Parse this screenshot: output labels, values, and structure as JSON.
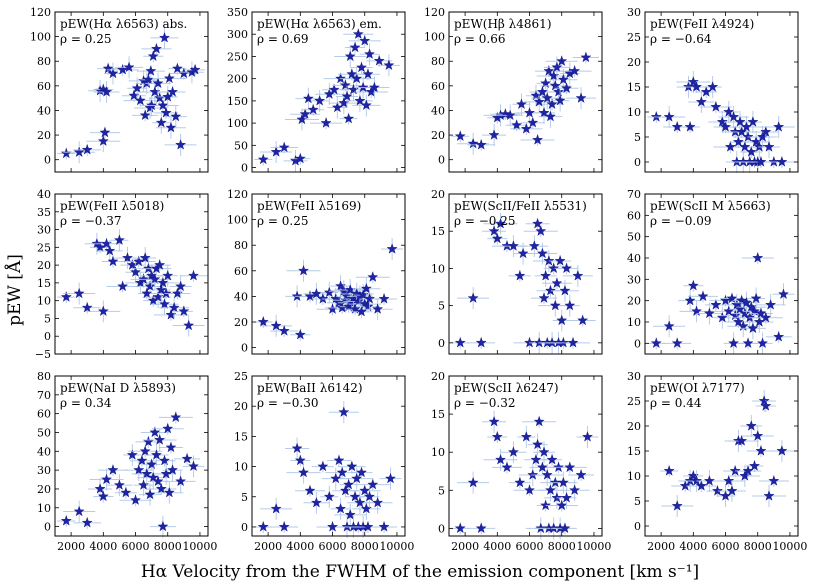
{
  "figure": {
    "ylabel": "pEW [Å]",
    "xlabel": "Hα Velocity from the FWHM of the emission component [km s⁻¹]"
  },
  "colors": {
    "marker": "#1f24a6",
    "errorbar": "#a9c3e6"
  },
  "chart_data": [
    {
      "type": "scatter",
      "title": "pEW(Hα λ6563) abs.",
      "rho": "ρ = 0.25",
      "xlim": [
        1000,
        10500
      ],
      "ylim": [
        -10,
        120
      ],
      "xticks": [
        2000,
        4000,
        6000,
        8000,
        10000
      ],
      "yticks": [
        0,
        20,
        40,
        60,
        80,
        100,
        120
      ],
      "x": [
        1700,
        2500,
        3000,
        3800,
        4000,
        4000,
        4100,
        4200,
        4300,
        4600,
        5200,
        5600,
        5900,
        6100,
        6300,
        6500,
        6600,
        6700,
        6800,
        6900,
        6950,
        7000,
        7100,
        7200,
        7300,
        7400,
        7500,
        7600,
        7700,
        7800,
        7900,
        8000,
        8100,
        8200,
        8300,
        8500,
        8600,
        8800,
        9000,
        9500,
        9700
      ],
      "y": [
        5,
        6,
        8,
        56,
        57,
        15,
        22,
        55,
        74,
        70,
        73,
        75,
        52,
        58,
        48,
        64,
        36,
        62,
        65,
        42,
        72,
        44,
        84,
        55,
        90,
        62,
        50,
        30,
        44,
        99,
        38,
        51,
        66,
        26,
        55,
        35,
        74,
        12,
        70,
        71,
        73
      ]
    },
    {
      "type": "scatter",
      "title": "pEW(Hα λ6563) em.",
      "rho": "ρ = 0.69",
      "xlim": [
        1000,
        10500
      ],
      "ylim": [
        -10,
        350
      ],
      "xticks": [
        2000,
        4000,
        6000,
        8000,
        10000
      ],
      "yticks": [
        0,
        50,
        100,
        150,
        200,
        250,
        300,
        350
      ],
      "x": [
        1700,
        2500,
        3000,
        3700,
        4000,
        4100,
        4300,
        4500,
        4800,
        5200,
        5600,
        5800,
        6100,
        6300,
        6500,
        6700,
        6800,
        6900,
        7000,
        7100,
        7200,
        7300,
        7400,
        7500,
        7600,
        7700,
        7800,
        7900,
        8000,
        8100,
        8200,
        8300,
        8400,
        8600,
        8900,
        9500
      ],
      "y": [
        18,
        35,
        45,
        15,
        20,
        108,
        120,
        155,
        130,
        150,
        100,
        165,
        175,
        135,
        200,
        145,
        185,
        160,
        110,
        250,
        210,
        175,
        270,
        200,
        300,
        150,
        225,
        180,
        285,
        140,
        210,
        255,
        170,
        180,
        240,
        230
      ]
    },
    {
      "type": "scatter",
      "title": "pEW(Hβ λ4861)",
      "rho": "ρ = 0.66",
      "xlim": [
        1000,
        10500
      ],
      "ylim": [
        -10,
        120
      ],
      "xticks": [
        2000,
        4000,
        6000,
        8000,
        10000
      ],
      "yticks": [
        0,
        20,
        40,
        60,
        80,
        100,
        120
      ],
      "x": [
        1700,
        2500,
        3000,
        3800,
        4000,
        4200,
        4500,
        4800,
        5200,
        5500,
        5800,
        6000,
        6200,
        6400,
        6500,
        6600,
        6800,
        6900,
        7000,
        7100,
        7200,
        7300,
        7400,
        7500,
        7600,
        7700,
        7800,
        7900,
        8000,
        8100,
        8300,
        8500,
        8800,
        9200,
        9500
      ],
      "y": [
        19,
        13,
        12,
        20,
        34,
        36,
        37,
        36,
        28,
        45,
        25,
        38,
        30,
        52,
        16,
        47,
        55,
        38,
        62,
        50,
        72,
        35,
        45,
        68,
        60,
        75,
        55,
        48,
        80,
        65,
        58,
        70,
        72,
        50,
        83
      ]
    },
    {
      "type": "scatter",
      "title": "pEW(FeII λ4924)",
      "rho": "ρ = −0.64",
      "xlim": [
        1000,
        10500
      ],
      "ylim": [
        -2,
        30
      ],
      "xticks": [
        2000,
        4000,
        6000,
        8000,
        10000
      ],
      "yticks": [
        0,
        5,
        10,
        15,
        20,
        25,
        30
      ],
      "x": [
        1700,
        2500,
        3000,
        3700,
        3800,
        4000,
        4200,
        4500,
        4800,
        5200,
        5400,
        5800,
        6000,
        6200,
        6300,
        6500,
        6600,
        6700,
        6800,
        6900,
        7000,
        7100,
        7200,
        7300,
        7400,
        7500,
        7600,
        7700,
        7800,
        7900,
        8000,
        8100,
        8200,
        8300,
        8500,
        8700,
        9000,
        9300,
        9500
      ],
      "y": [
        9,
        9,
        7,
        15,
        7,
        16,
        15,
        12,
        14,
        15,
        11,
        8,
        7,
        10,
        3,
        9,
        6,
        0,
        4,
        8,
        6,
        0,
        3,
        7,
        5,
        0,
        2,
        8,
        0,
        4,
        0,
        3,
        0,
        5,
        6,
        3,
        0,
        7,
        0
      ]
    },
    {
      "type": "scatter",
      "title": "pEW(FeII λ5018)",
      "rho": "ρ = −0.37",
      "xlim": [
        1000,
        10500
      ],
      "ylim": [
        -5,
        40
      ],
      "xticks": [
        2000,
        4000,
        6000,
        8000,
        10000
      ],
      "yticks": [
        -5,
        0,
        5,
        10,
        15,
        20,
        25,
        30,
        35,
        40
      ],
      "x": [
        1700,
        2500,
        3000,
        3600,
        3800,
        4000,
        4200,
        4400,
        4600,
        5000,
        5200,
        5500,
        5800,
        6000,
        6200,
        6300,
        6500,
        6600,
        6700,
        6800,
        6900,
        7000,
        7100,
        7200,
        7300,
        7400,
        7500,
        7600,
        7700,
        7800,
        7900,
        8000,
        8200,
        8400,
        8600,
        8800,
        9000,
        9300,
        9600
      ],
      "y": [
        11,
        12,
        8,
        26,
        25,
        7,
        26,
        24,
        21,
        27,
        14,
        22,
        20,
        18,
        21,
        15,
        16,
        22,
        12,
        19,
        14,
        17,
        10,
        16,
        19,
        11,
        20,
        13,
        15,
        9,
        12,
        17,
        6,
        8,
        12,
        14,
        7,
        3,
        17
      ]
    },
    {
      "type": "scatter",
      "title": "pEW(FeII λ5169)",
      "rho": "ρ = 0.25",
      "xlim": [
        1000,
        10500
      ],
      "ylim": [
        -5,
        120
      ],
      "xticks": [
        2000,
        4000,
        6000,
        8000,
        10000
      ],
      "yticks": [
        0,
        20,
        40,
        60,
        80,
        100,
        120
      ],
      "x": [
        1700,
        2500,
        3000,
        3800,
        4000,
        4200,
        4600,
        5000,
        5400,
        5800,
        6000,
        6200,
        6400,
        6500,
        6600,
        6700,
        6800,
        6900,
        7000,
        7100,
        7200,
        7300,
        7400,
        7500,
        7600,
        7700,
        7800,
        7900,
        8000,
        8100,
        8200,
        8300,
        8500,
        8800,
        9200,
        9700
      ],
      "y": [
        20,
        17,
        13,
        40,
        10,
        60,
        40,
        42,
        38,
        43,
        30,
        38,
        35,
        48,
        31,
        44,
        37,
        40,
        32,
        45,
        35,
        38,
        30,
        42,
        36,
        40,
        28,
        41,
        34,
        46,
        32,
        38,
        55,
        30,
        38,
        77
      ]
    },
    {
      "type": "scatter",
      "title": "pEW(ScII/FeII λ5531)",
      "rho": "ρ = −0.25",
      "xlim": [
        1000,
        10500
      ],
      "ylim": [
        -1.5,
        20
      ],
      "xticks": [
        2000,
        4000,
        6000,
        8000,
        10000
      ],
      "yticks": [
        0,
        5,
        10,
        15,
        20
      ],
      "x": [
        1700,
        2500,
        3000,
        3800,
        4000,
        4200,
        4600,
        5000,
        5400,
        5600,
        6000,
        6300,
        6500,
        6600,
        6700,
        6800,
        6900,
        7000,
        7100,
        7200,
        7300,
        7400,
        7500,
        7600,
        7700,
        7800,
        7900,
        8000,
        8100,
        8200,
        8300,
        8500,
        8700,
        9000,
        9300
      ],
      "y": [
        0,
        6,
        0,
        15,
        14,
        16,
        13,
        13,
        9,
        12,
        0,
        13,
        16,
        0,
        15,
        12,
        6,
        9,
        0,
        11,
        7,
        0,
        10,
        5,
        8,
        0,
        11,
        3,
        0,
        7,
        10,
        5,
        0,
        9,
        3
      ]
    },
    {
      "type": "scatter",
      "title": "pEW(ScII M λ5663)",
      "rho": "ρ = −0.09",
      "xlim": [
        1000,
        10500
      ],
      "ylim": [
        -5,
        70
      ],
      "xticks": [
        2000,
        4000,
        6000,
        8000,
        10000
      ],
      "yticks": [
        0,
        10,
        20,
        30,
        40,
        50,
        60,
        70
      ],
      "x": [
        1700,
        2500,
        3000,
        3800,
        4000,
        4200,
        4600,
        5000,
        5400,
        5800,
        6000,
        6200,
        6400,
        6500,
        6600,
        6700,
        6800,
        6900,
        7000,
        7100,
        7200,
        7300,
        7400,
        7500,
        7600,
        7700,
        7800,
        7900,
        8000,
        8100,
        8200,
        8300,
        8500,
        8800,
        9300,
        9600
      ],
      "y": [
        0,
        8,
        0,
        20,
        27,
        15,
        22,
        14,
        18,
        12,
        20,
        15,
        21,
        0,
        13,
        18,
        10,
        16,
        20,
        8,
        14,
        19,
        0,
        12,
        17,
        7,
        15,
        21,
        40,
        10,
        14,
        0,
        12,
        18,
        3,
        23
      ]
    },
    {
      "type": "scatter",
      "title": "pEW(NaI D λ5893)",
      "rho": "ρ = 0.34",
      "xlim": [
        1000,
        10500
      ],
      "ylim": [
        -5,
        80
      ],
      "xticks": [
        2000,
        4000,
        6000,
        8000,
        10000
      ],
      "yticks": [
        0,
        10,
        20,
        30,
        40,
        50,
        60,
        70,
        80
      ],
      "x": [
        1700,
        2500,
        3000,
        3800,
        4000,
        4200,
        4600,
        5000,
        5400,
        5800,
        6000,
        6200,
        6400,
        6500,
        6600,
        6700,
        6800,
        6900,
        7000,
        7100,
        7200,
        7300,
        7400,
        7500,
        7600,
        7700,
        7800,
        7900,
        8000,
        8100,
        8200,
        8300,
        8500,
        8800,
        9200,
        9600
      ],
      "y": [
        3,
        8,
        2,
        20,
        16,
        25,
        30,
        22,
        18,
        38,
        14,
        30,
        35,
        22,
        40,
        28,
        45,
        17,
        33,
        26,
        50,
        38,
        24,
        46,
        20,
        0,
        35,
        28,
        52,
        18,
        42,
        30,
        58,
        24,
        36,
        32
      ]
    },
    {
      "type": "scatter",
      "title": "pEW(BaII λ6142)",
      "rho": "ρ = −0.30",
      "xlim": [
        1000,
        10500
      ],
      "ylim": [
        -1.5,
        25
      ],
      "xticks": [
        2000,
        4000,
        6000,
        8000,
        10000
      ],
      "yticks": [
        0,
        5,
        10,
        15,
        20,
        25
      ],
      "x": [
        1700,
        2500,
        3000,
        3800,
        4000,
        4200,
        4600,
        5000,
        5400,
        5800,
        6000,
        6200,
        6400,
        6500,
        6600,
        6700,
        6800,
        6900,
        7000,
        7100,
        7200,
        7300,
        7400,
        7500,
        7600,
        7700,
        7800,
        7900,
        8000,
        8100,
        8200,
        8300,
        8500,
        8800,
        9200,
        9600
      ],
      "y": [
        0,
        3,
        0,
        13,
        11,
        9,
        6,
        4,
        10,
        5,
        0,
        8,
        11,
        3,
        9,
        19,
        6,
        0,
        7,
        2,
        10,
        0,
        5,
        8,
        0,
        4,
        9,
        0,
        6,
        3,
        0,
        5,
        7,
        4,
        0,
        8
      ]
    },
    {
      "type": "scatter",
      "title": "pEW(ScII λ6247)",
      "rho": "ρ = −0.32",
      "xlim": [
        1000,
        10500
      ],
      "ylim": [
        -1,
        20
      ],
      "xticks": [
        2000,
        4000,
        6000,
        8000,
        10000
      ],
      "yticks": [
        0,
        5,
        10,
        15,
        20
      ],
      "x": [
        1700,
        2500,
        3000,
        3800,
        4000,
        4200,
        4600,
        5000,
        5400,
        5800,
        6000,
        6200,
        6400,
        6500,
        6600,
        6700,
        6800,
        6900,
        7000,
        7100,
        7200,
        7300,
        7400,
        7500,
        7600,
        7700,
        7800,
        7900,
        8000,
        8100,
        8200,
        8300,
        8500,
        8800,
        9200,
        9600
      ],
      "y": [
        0,
        6,
        0,
        14,
        12,
        9,
        8,
        10,
        6,
        12,
        5,
        7,
        9,
        11,
        14,
        0,
        8,
        10,
        3,
        7,
        0,
        5,
        9,
        0,
        6,
        4,
        8,
        0,
        3,
        6,
        0,
        4,
        8,
        5,
        7,
        12
      ]
    },
    {
      "type": "scatter",
      "title": "pEW(OI λ7177)",
      "rho": "ρ = 0.44",
      "xlim": [
        1000,
        10500
      ],
      "ylim": [
        -2,
        30
      ],
      "xticks": [
        2000,
        4000,
        6000,
        8000,
        10000
      ],
      "yticks": [
        0,
        5,
        10,
        15,
        20,
        25,
        30
      ],
      "x": [
        2500,
        3000,
        3500,
        3800,
        4000,
        4200,
        4500,
        5000,
        5500,
        6000,
        6200,
        6400,
        6600,
        6800,
        7000,
        7200,
        7400,
        7600,
        7800,
        8000,
        8200,
        8400,
        8500,
        8700,
        9000,
        9500
      ],
      "y": [
        11,
        4,
        8,
        9,
        10,
        9,
        8,
        9,
        7,
        6,
        9,
        7,
        11,
        17,
        17,
        10,
        11,
        20,
        12,
        18,
        15,
        25,
        24,
        6,
        9,
        15
      ]
    }
  ]
}
